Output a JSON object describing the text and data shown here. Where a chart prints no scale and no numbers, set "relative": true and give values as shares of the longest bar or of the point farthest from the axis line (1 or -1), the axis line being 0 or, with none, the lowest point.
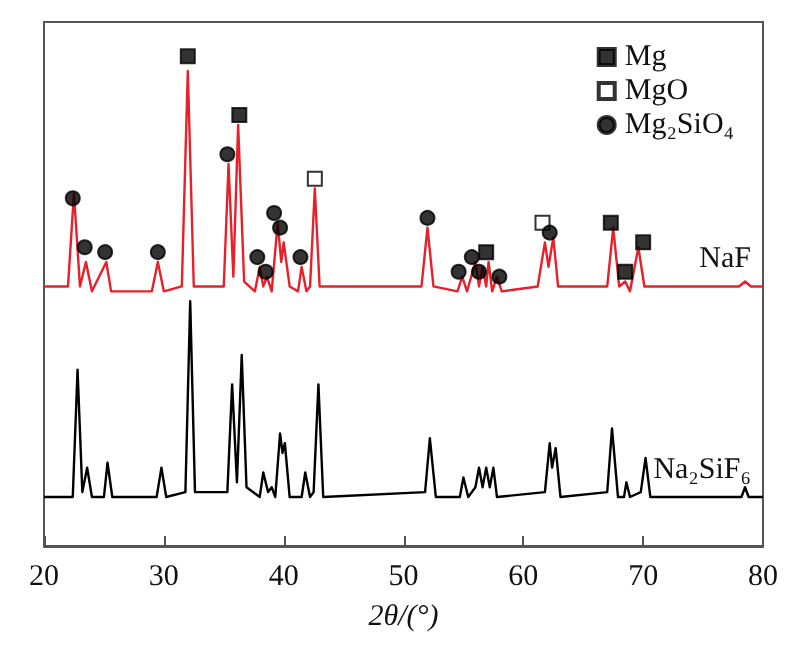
{
  "chart_data": {
    "type": "line",
    "xlabel": "2θ/(°)",
    "relative": true,
    "xlim": [
      20,
      80
    ],
    "xticks": [
      20,
      30,
      40,
      50,
      60,
      70,
      80
    ],
    "tick_labels": "x",
    "grid": false,
    "legend": "top right",
    "series": [
      {
        "name": "NaF",
        "color": "#e8202a",
        "x": [
          20,
          22.0,
          22.5,
          23.0,
          23.5,
          24.0,
          25.2,
          25.6,
          29.0,
          29.5,
          30.0,
          31.5,
          32.0,
          32.5,
          35.0,
          35.4,
          35.8,
          36.2,
          36.7,
          37.6,
          38.0,
          38.3,
          38.6,
          39.0,
          39.5,
          39.8,
          40.0,
          40.5,
          41.2,
          41.5,
          41.9,
          42.2,
          42.6,
          43.0,
          44.5,
          46.5,
          48.5,
          51.5,
          52.0,
          52.5,
          54.5,
          54.9,
          55.3,
          56.0,
          56.3,
          56.6,
          56.9,
          57.1,
          57.4,
          57.8,
          58.2,
          61.2,
          61.8,
          62.1,
          62.5,
          62.9,
          67.0,
          67.5,
          68.0,
          68.5,
          68.9,
          69.6,
          70.1,
          78.0,
          78.5,
          79.0,
          80
        ],
        "values": [
          0.53,
          0.53,
          0.72,
          0.53,
          0.58,
          0.52,
          0.58,
          0.52,
          0.52,
          0.58,
          0.52,
          0.53,
          0.97,
          0.53,
          0.53,
          0.78,
          0.55,
          0.86,
          0.54,
          0.52,
          0.57,
          0.53,
          0.55,
          0.52,
          0.66,
          0.58,
          0.62,
          0.53,
          0.52,
          0.57,
          0.52,
          0.53,
          0.73,
          0.53,
          0.53,
          0.53,
          0.53,
          0.53,
          0.65,
          0.53,
          0.52,
          0.55,
          0.52,
          0.58,
          0.53,
          0.57,
          0.53,
          0.58,
          0.52,
          0.55,
          0.52,
          0.53,
          0.62,
          0.57,
          0.63,
          0.53,
          0.53,
          0.65,
          0.53,
          0.54,
          0.52,
          0.61,
          0.53,
          0.53,
          0.54,
          0.53,
          0.53
        ]
      },
      {
        "name": "Na₂SiF₆",
        "color": "#000000",
        "x": [
          20,
          22.4,
          22.8,
          23.2,
          23.6,
          24.0,
          25.0,
          25.3,
          25.7,
          29.4,
          29.8,
          30.2,
          31.8,
          32.2,
          32.6,
          35.3,
          35.7,
          36.1,
          36.5,
          36.9,
          38.0,
          38.3,
          38.7,
          39.0,
          39.3,
          39.7,
          39.9,
          40.1,
          40.5,
          41.5,
          41.8,
          42.2,
          42.5,
          42.9,
          43.3,
          51.8,
          52.2,
          52.7,
          54.7,
          55.0,
          55.4,
          56.0,
          56.3,
          56.6,
          56.9,
          57.2,
          57.5,
          57.8,
          61.8,
          62.2,
          62.4,
          62.7,
          63.1,
          67.0,
          67.4,
          67.9,
          68.4,
          68.6,
          68.9,
          69.8,
          70.2,
          70.6,
          78.2,
          78.5,
          78.8,
          80
        ],
        "values": [
          0.1,
          0.1,
          0.36,
          0.11,
          0.16,
          0.1,
          0.1,
          0.17,
          0.1,
          0.1,
          0.16,
          0.1,
          0.11,
          0.5,
          0.11,
          0.11,
          0.33,
          0.13,
          0.39,
          0.12,
          0.1,
          0.15,
          0.11,
          0.12,
          0.1,
          0.23,
          0.19,
          0.21,
          0.1,
          0.1,
          0.15,
          0.1,
          0.11,
          0.33,
          0.1,
          0.11,
          0.22,
          0.1,
          0.1,
          0.14,
          0.1,
          0.12,
          0.16,
          0.12,
          0.16,
          0.12,
          0.16,
          0.1,
          0.11,
          0.21,
          0.16,
          0.2,
          0.1,
          0.11,
          0.24,
          0.1,
          0.1,
          0.13,
          0.1,
          0.11,
          0.18,
          0.1,
          0.1,
          0.12,
          0.1,
          0.1
        ]
      },
      {
        "name": "Mg",
        "type": "scatter",
        "marker": "square",
        "color": "#000000",
        "x": [
          32.0,
          36.3,
          56.9,
          67.3,
          68.5,
          70.0
        ],
        "values": [
          1.0,
          0.88,
          0.6,
          0.66,
          0.56,
          0.62
        ]
      },
      {
        "name": "MgO",
        "type": "scatter",
        "marker": "square",
        "color": "#ffffff",
        "x": [
          42.6,
          61.6
        ],
        "values": [
          0.75,
          0.66
        ]
      },
      {
        "name": "Mg₂SiO₄",
        "type": "scatter",
        "marker": "circle",
        "color": "#000000",
        "x": [
          22.4,
          23.4,
          25.1,
          29.5,
          35.3,
          37.8,
          38.5,
          39.2,
          39.7,
          41.4,
          52.0,
          54.6,
          55.7,
          56.3,
          58.0,
          62.2
        ],
        "values": [
          0.71,
          0.61,
          0.6,
          0.6,
          0.8,
          0.59,
          0.56,
          0.68,
          0.65,
          0.59,
          0.67,
          0.56,
          0.59,
          0.56,
          0.55,
          0.64
        ]
      }
    ]
  }
}
